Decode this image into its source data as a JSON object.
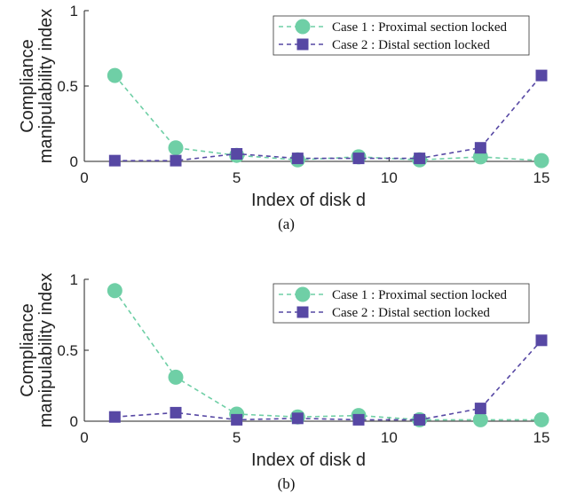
{
  "colors": {
    "case1": "#6fcfa6",
    "case2": "#5748a4",
    "axis": "#222222"
  },
  "chart_data": [
    {
      "type": "scatter",
      "caption": "(a)",
      "xlabel": "Index of disk d",
      "ylabel_lines": [
        "Compliance",
        "manipulability index"
      ],
      "xlim": [
        0,
        15
      ],
      "ylim": [
        0,
        1
      ],
      "xticks": [
        0,
        5,
        10,
        15
      ],
      "yticks": [
        0,
        0.5,
        1
      ],
      "legend": "top-right",
      "grid": false,
      "series": [
        {
          "name": "Case 1 : Proximal section locked",
          "marker": "circle",
          "line": "dashed",
          "x": [
            1,
            3,
            5,
            7,
            9,
            11,
            13,
            15
          ],
          "y": [
            0.57,
            0.09,
            0.04,
            0.01,
            0.03,
            0.01,
            0.03,
            0.005
          ]
        },
        {
          "name": "Case 2 : Distal section locked",
          "marker": "square",
          "line": "dashed",
          "x": [
            1,
            3,
            5,
            7,
            9,
            11,
            13,
            15
          ],
          "y": [
            0.005,
            0.005,
            0.05,
            0.02,
            0.02,
            0.02,
            0.09,
            0.57
          ]
        }
      ]
    },
    {
      "type": "scatter",
      "caption": "(b)",
      "xlabel": "Index of disk d",
      "ylabel_lines": [
        "Compliance",
        "manipulability index"
      ],
      "xlim": [
        0,
        15
      ],
      "ylim": [
        0,
        1
      ],
      "xticks": [
        0,
        5,
        10,
        15
      ],
      "yticks": [
        0,
        0.5,
        1
      ],
      "legend": "top-right",
      "grid": false,
      "series": [
        {
          "name": "Case 1 : Proximal section locked",
          "marker": "circle",
          "line": "dashed",
          "x": [
            1,
            3,
            5,
            7,
            9,
            11,
            13,
            15
          ],
          "y": [
            0.92,
            0.31,
            0.05,
            0.03,
            0.04,
            0.01,
            0.01,
            0.01
          ]
        },
        {
          "name": "Case 2 : Distal section locked",
          "marker": "square",
          "line": "dashed",
          "x": [
            1,
            3,
            5,
            7,
            9,
            11,
            13,
            15
          ],
          "y": [
            0.03,
            0.06,
            0.01,
            0.02,
            0.01,
            0.01,
            0.09,
            0.57
          ]
        }
      ]
    }
  ]
}
